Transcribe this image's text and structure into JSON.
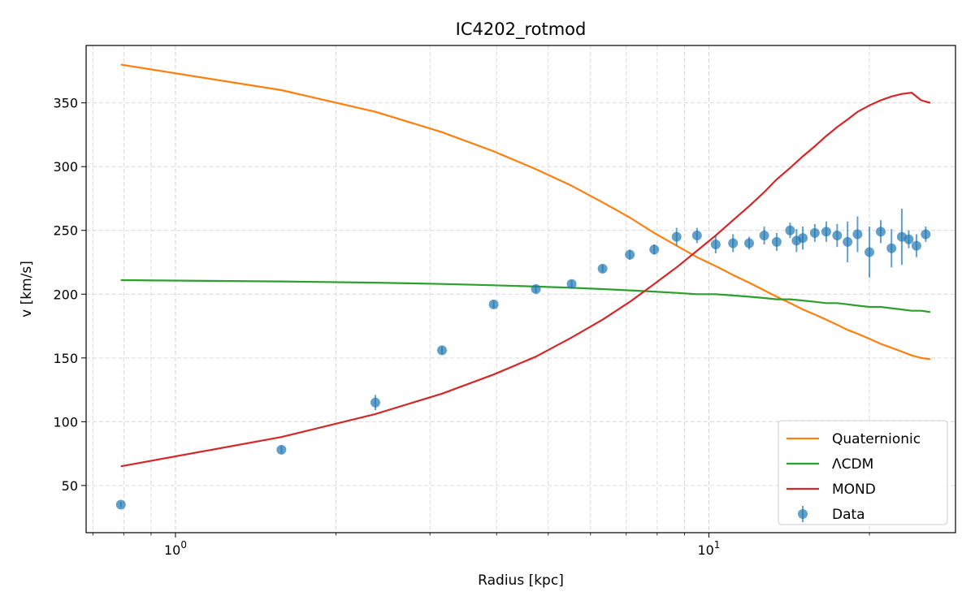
{
  "chart_data": {
    "type": "line",
    "title": "IC4202_rotmod",
    "xlabel": "Radius [kpc]",
    "ylabel": "v [km/s]",
    "xscale": "log",
    "xlim": [
      0.68,
      29
    ],
    "ylim": [
      13,
      395
    ],
    "grid": true,
    "legend_position": "lower right",
    "x_ticks": [
      {
        "base": "10",
        "exp": "0",
        "value": 1
      },
      {
        "base": "10",
        "exp": "1",
        "value": 10
      }
    ],
    "y_ticks": [
      {
        "label": "50",
        "value": 50
      },
      {
        "label": "100",
        "value": 100
      },
      {
        "label": "150",
        "value": 150
      },
      {
        "label": "200",
        "value": 200
      },
      {
        "label": "250",
        "value": 250
      },
      {
        "label": "300",
        "value": 300
      },
      {
        "label": "350",
        "value": 350
      }
    ],
    "series": [
      {
        "name": "Quaternionic",
        "kind": "line",
        "color": "#ff7f0e",
        "x": [
          0.79,
          1.58,
          2.37,
          3.16,
          3.95,
          4.74,
          5.53,
          6.32,
          7.11,
          7.9,
          8.7,
          9.5,
          10.3,
          11.1,
          11.9,
          12.7,
          13.4,
          14.2,
          15.0,
          15.8,
          16.6,
          17.4,
          18.2,
          19.0,
          20.0,
          21.0,
          22.0,
          23.0,
          24.0,
          25.0,
          26.0
        ],
        "y": [
          380,
          360,
          343,
          327,
          312,
          298,
          285,
          272,
          260,
          248,
          238,
          229,
          222,
          215,
          209,
          203,
          198,
          193,
          188,
          184,
          180,
          176,
          172,
          169,
          165,
          161,
          158,
          155,
          152,
          150,
          149
        ]
      },
      {
        "name": "ΛCDM",
        "kind": "line",
        "color": "#2ca02c",
        "x": [
          0.79,
          1.58,
          2.37,
          3.16,
          3.95,
          4.74,
          5.53,
          6.32,
          7.11,
          7.9,
          8.7,
          9.5,
          10.3,
          11.1,
          11.9,
          12.7,
          13.4,
          14.2,
          15.0,
          15.8,
          16.6,
          17.4,
          18.2,
          19.0,
          20.0,
          21.0,
          22.0,
          23.0,
          24.0,
          25.0,
          26.0
        ],
        "y": [
          211,
          210,
          209,
          208,
          207,
          206,
          205,
          204,
          203,
          202,
          201,
          200,
          200,
          199,
          198,
          197,
          196,
          196,
          195,
          194,
          193,
          193,
          192,
          191,
          190,
          190,
          189,
          188,
          187,
          187,
          186
        ]
      },
      {
        "name": "MOND",
        "kind": "line",
        "color": "#d62728",
        "x": [
          0.79,
          1.58,
          2.37,
          3.16,
          3.95,
          4.74,
          5.53,
          6.32,
          7.11,
          7.9,
          8.7,
          9.5,
          10.3,
          11.1,
          11.9,
          12.7,
          13.4,
          14.2,
          15.0,
          15.8,
          16.6,
          17.4,
          18.2,
          19.0,
          20.0,
          21.0,
          22.0,
          23.0,
          24.0,
          25.0,
          26.0
        ],
        "y": [
          65,
          88,
          106,
          122,
          137,
          151,
          166,
          180,
          194,
          208,
          221,
          234,
          246,
          258,
          269,
          280,
          290,
          299,
          308,
          316,
          324,
          331,
          337,
          343,
          348,
          352,
          355,
          357,
          358,
          352,
          350
        ]
      },
      {
        "name": "Data",
        "kind": "errorbar",
        "color": "#1f77b4",
        "x": [
          0.79,
          1.58,
          2.37,
          3.16,
          3.95,
          4.74,
          5.53,
          6.32,
          7.11,
          7.9,
          8.7,
          9.5,
          10.3,
          11.1,
          11.9,
          12.7,
          13.4,
          14.2,
          14.6,
          15.0,
          15.8,
          16.6,
          17.4,
          18.2,
          19.0,
          20.0,
          21.0,
          22.0,
          23.0,
          23.7,
          24.5,
          25.5
        ],
        "y": [
          35,
          78,
          115,
          156,
          192,
          204,
          208,
          220,
          231,
          235,
          245,
          246,
          239,
          240,
          240,
          246,
          241,
          250,
          242,
          244,
          248,
          249,
          246,
          241,
          247,
          233,
          249,
          236,
          245,
          243,
          238,
          247
        ],
        "err": [
          2,
          3,
          6,
          3,
          3,
          3,
          3,
          3,
          4,
          4,
          7,
          6,
          7,
          7,
          5,
          7,
          7,
          6,
          9,
          9,
          7,
          8,
          9,
          16,
          14,
          20,
          9,
          15,
          22,
          7,
          9,
          6
        ]
      }
    ]
  }
}
